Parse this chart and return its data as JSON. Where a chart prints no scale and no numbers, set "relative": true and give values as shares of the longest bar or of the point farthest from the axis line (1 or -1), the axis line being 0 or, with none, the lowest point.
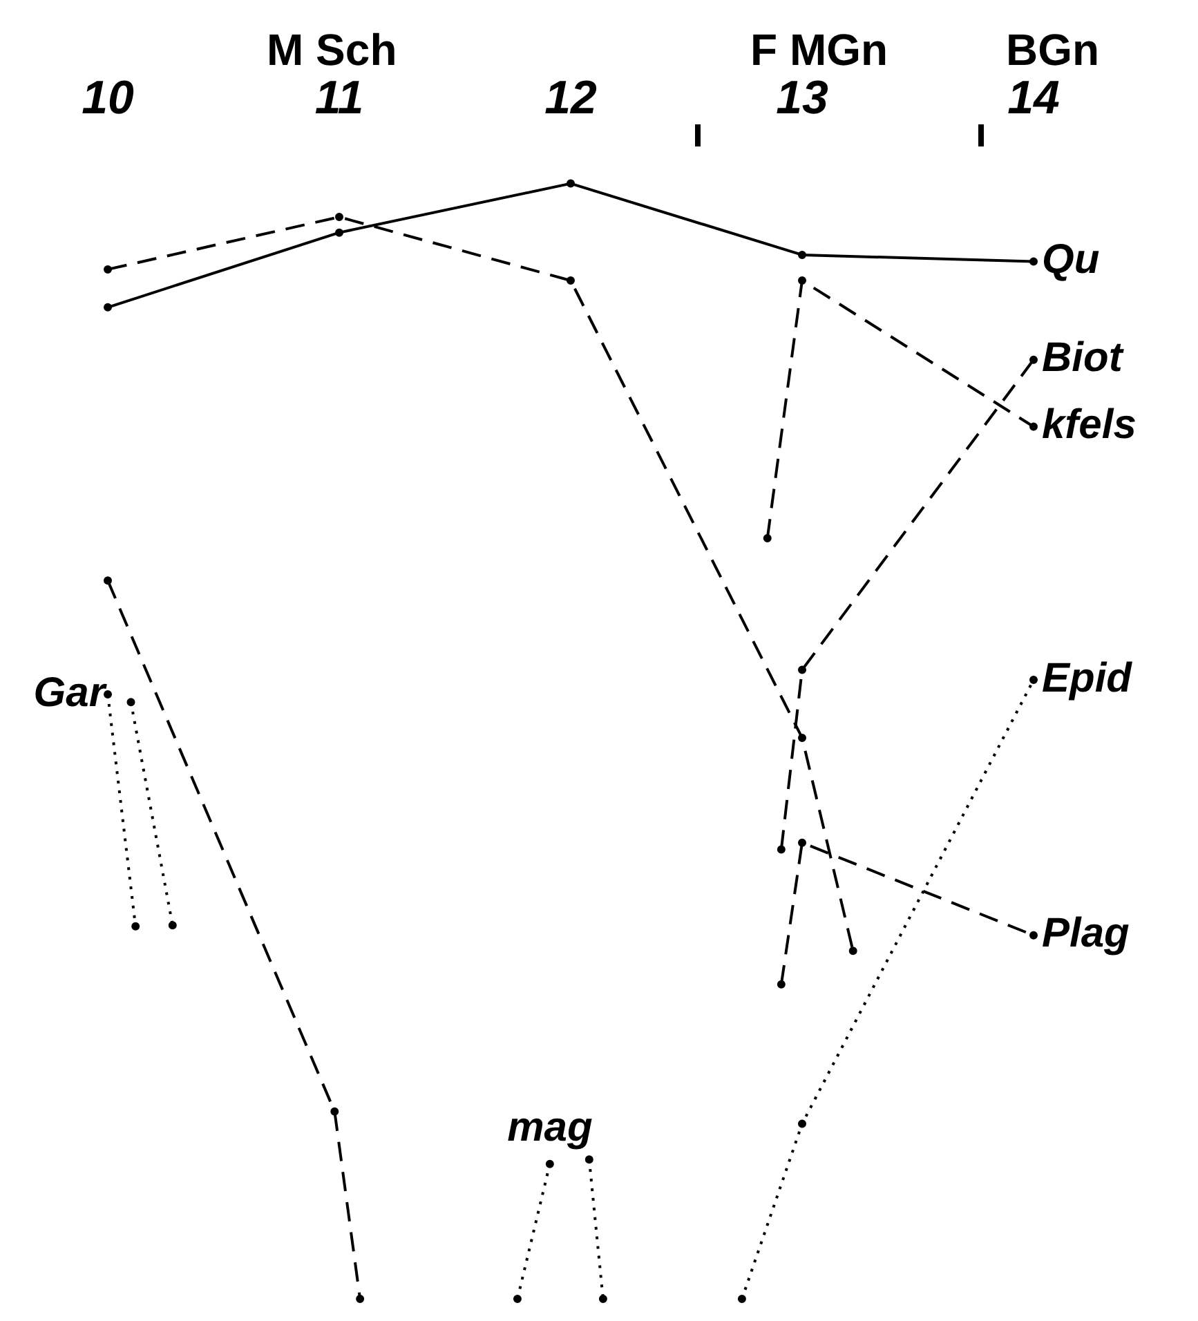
{
  "chart_data": {
    "type": "line",
    "relative": true,
    "legend": false,
    "grid": false,
    "marker": "circle",
    "xlim": [
      10,
      14
    ],
    "xticks": [
      10,
      11,
      12,
      13,
      14
    ],
    "annotations": [
      "M Sch",
      "F MGn",
      "BGn"
    ],
    "series": [
      {
        "name": "Qu",
        "color": "#000000",
        "line_style": "solid",
        "x": [
          10,
          11,
          12,
          13,
          14
        ],
        "values": [
          0.889,
          0.956,
          1.0,
          0.936,
          0.93
        ]
      },
      {
        "color": "#000000",
        "line_style": "dashed",
        "x": [
          10,
          11,
          12,
          13,
          13.22
        ],
        "values": [
          0.923,
          0.97,
          0.913,
          0.503,
          0.312
        ]
      },
      {
        "name": "kfels",
        "color": "#000000",
        "line_style": "dashed",
        "x": [
          12.85,
          13,
          14
        ],
        "values": [
          0.682,
          0.913,
          0.782
        ]
      },
      {
        "name": "Biot",
        "color": "#000000",
        "line_style": "dashed",
        "x": [
          12.91,
          13,
          14
        ],
        "values": [
          0.403,
          0.564,
          0.842
        ]
      },
      {
        "name": "Plag",
        "color": "#000000",
        "line_style": "dashed",
        "x": [
          12.91,
          13,
          14
        ],
        "values": [
          0.282,
          0.409,
          0.326
        ]
      },
      {
        "name": "Epid",
        "color": "#000000",
        "line_style": "dotted",
        "x": [
          12.74,
          13,
          14
        ],
        "values": [
          0,
          0.157,
          0.555
        ]
      },
      {
        "color": "#000000",
        "line_style": "dashed",
        "x": [
          10,
          10.98,
          11.09
        ],
        "values": [
          0.644,
          0.168,
          0
        ]
      },
      {
        "name": "Gar",
        "color": "#000000",
        "line_style": "dotted",
        "x": [
          10,
          10.12
        ],
        "values": [
          0.542,
          0.334
        ]
      },
      {
        "color": "#000000",
        "line_style": "dotted",
        "x": [
          10.1,
          10.28
        ],
        "values": [
          0.535,
          0.335
        ]
      },
      {
        "name": "mag",
        "color": "#000000",
        "line_style": "dotted",
        "x": [
          11.91,
          11.77
        ],
        "values": [
          0.121,
          0
        ]
      },
      {
        "color": "#000000",
        "line_style": "dotted",
        "x": [
          12.08,
          12.14
        ],
        "values": [
          0.125,
          0
        ]
      }
    ]
  }
}
